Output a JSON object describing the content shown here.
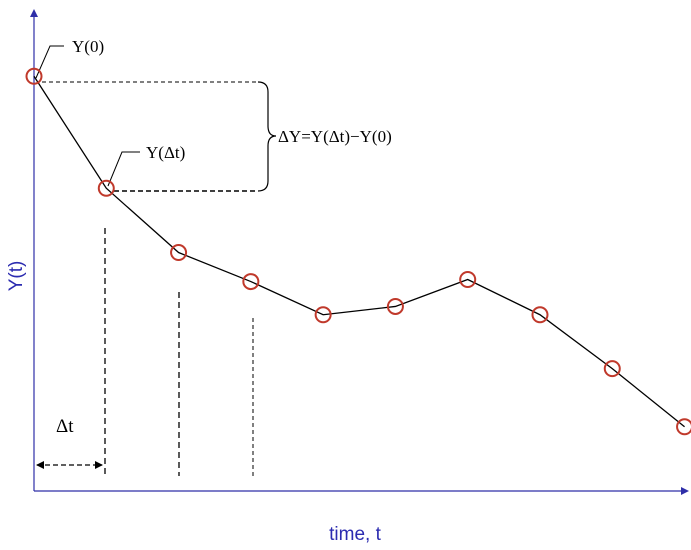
{
  "chart_data": {
    "type": "line",
    "title": "",
    "xlabel": "time, t",
    "ylabel": "Y(t)",
    "x": [
      0,
      1,
      2,
      3,
      4,
      5,
      6,
      7,
      8,
      9
    ],
    "values": [
      1.0,
      0.73,
      0.575,
      0.505,
      0.425,
      0.445,
      0.51,
      0.425,
      0.295,
      0.155
    ],
    "ylim": [
      0,
      1.155
    ],
    "xlim": [
      0,
      9.02
    ],
    "grid": false,
    "annotations": {
      "y0_label": "Y(0)",
      "ydt_label": "Y(Δt)",
      "delta_y_label": "ΔY=Y(Δt)−Y(0)",
      "delta_t_label": "Δt"
    }
  },
  "colors": {
    "axis": "#2e2ea8",
    "ylabel": "#2b2bb0",
    "line": "#000000",
    "marker": "#c0392b"
  }
}
